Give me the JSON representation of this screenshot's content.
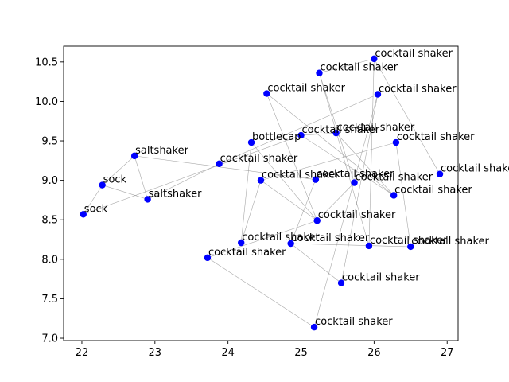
{
  "chart_data": {
    "type": "scatter",
    "title": "",
    "xlabel": "",
    "ylabel": "",
    "xlim": [
      21.75,
      27.15
    ],
    "ylim": [
      6.97,
      10.7
    ],
    "xticks": [
      22,
      23,
      24,
      25,
      26,
      27
    ],
    "yticks": [
      7.0,
      7.5,
      8.0,
      8.5,
      9.0,
      9.5,
      10.0,
      10.5
    ],
    "xtick_labels": [
      "22",
      "23",
      "24",
      "25",
      "26",
      "27"
    ],
    "ytick_labels": [
      "7.0",
      "7.5",
      "8.0",
      "8.5",
      "9.0",
      "9.5",
      "10.0",
      "10.5"
    ],
    "grid": false,
    "point_color": "#0000ff",
    "edge_color": "#999999",
    "points": [
      {
        "x": 22.02,
        "y": 8.57,
        "label": "sock"
      },
      {
        "x": 22.28,
        "y": 8.94,
        "label": "sock"
      },
      {
        "x": 22.72,
        "y": 9.31,
        "label": "saltshaker"
      },
      {
        "x": 22.9,
        "y": 8.76,
        "label": "saltshaker"
      },
      {
        "x": 23.72,
        "y": 8.02,
        "label": "cocktail shaker"
      },
      {
        "x": 23.88,
        "y": 9.21,
        "label": "cocktail shaker"
      },
      {
        "x": 24.18,
        "y": 8.21,
        "label": "cocktail shaker"
      },
      {
        "x": 24.32,
        "y": 9.48,
        "label": "bottlecap"
      },
      {
        "x": 24.45,
        "y": 9.0,
        "label": "cocktail shaker"
      },
      {
        "x": 24.53,
        "y": 10.1,
        "label": "cocktail shaker"
      },
      {
        "x": 24.86,
        "y": 8.2,
        "label": "cocktail shaker"
      },
      {
        "x": 25.0,
        "y": 9.57,
        "label": "cocktail shaker"
      },
      {
        "x": 25.18,
        "y": 7.14,
        "label": "cocktail shaker"
      },
      {
        "x": 25.2,
        "y": 9.01,
        "label": "cocktail shaker"
      },
      {
        "x": 25.22,
        "y": 8.49,
        "label": "cocktail shaker"
      },
      {
        "x": 25.25,
        "y": 10.36,
        "label": "cocktail shaker"
      },
      {
        "x": 25.48,
        "y": 9.6,
        "label": "cocktail shaker"
      },
      {
        "x": 25.55,
        "y": 7.7,
        "label": "cocktail shaker"
      },
      {
        "x": 25.73,
        "y": 8.97,
        "label": "cocktail shaker"
      },
      {
        "x": 25.93,
        "y": 8.17,
        "label": "cocktail shaker"
      },
      {
        "x": 26.0,
        "y": 10.54,
        "label": "cocktail shaker"
      },
      {
        "x": 26.05,
        "y": 10.09,
        "label": "cocktail shaker"
      },
      {
        "x": 26.27,
        "y": 8.81,
        "label": "cocktail shaker"
      },
      {
        "x": 26.3,
        "y": 9.48,
        "label": "cocktail shaker"
      },
      {
        "x": 26.5,
        "y": 8.16,
        "label": "cocktail shaker"
      },
      {
        "x": 26.9,
        "y": 9.08,
        "label": "cocktail shaker"
      }
    ],
    "edges": [
      [
        0,
        1
      ],
      [
        0,
        11
      ],
      [
        1,
        2
      ],
      [
        1,
        3
      ],
      [
        2,
        3
      ],
      [
        2,
        13
      ],
      [
        3,
        5
      ],
      [
        4,
        14
      ],
      [
        4,
        12
      ],
      [
        5,
        21
      ],
      [
        6,
        8
      ],
      [
        6,
        7
      ],
      [
        8,
        14
      ],
      [
        8,
        23
      ],
      [
        9,
        22
      ],
      [
        9,
        14
      ],
      [
        10,
        24
      ],
      [
        10,
        13
      ],
      [
        10,
        17
      ],
      [
        11,
        22
      ],
      [
        11,
        16
      ],
      [
        15,
        19
      ],
      [
        15,
        20
      ],
      [
        16,
        22
      ],
      [
        17,
        21
      ],
      [
        18,
        14
      ],
      [
        18,
        15
      ],
      [
        19,
        20
      ],
      [
        20,
        25
      ],
      [
        21,
        12
      ],
      [
        23,
        24
      ],
      [
        7,
        14
      ]
    ]
  }
}
